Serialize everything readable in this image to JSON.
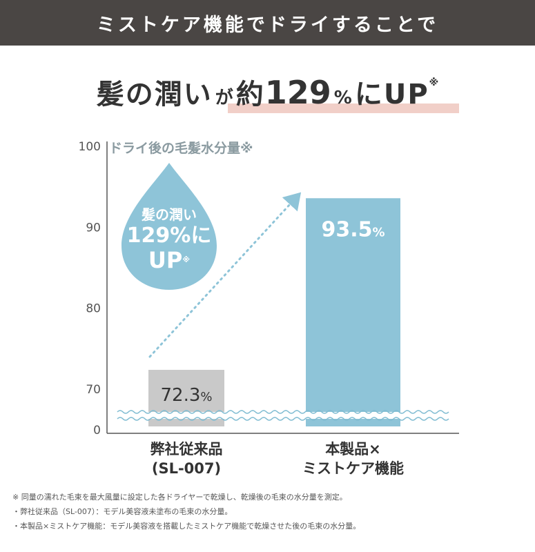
{
  "header": {
    "title": "ミストケア機能でドライすることで"
  },
  "headline": {
    "part1": "髪の潤い",
    "part2": "が",
    "part3": "約",
    "number": "129",
    "percent": "%",
    "part4": "にUP",
    "note": "※"
  },
  "drop": {
    "line1": "髪の潤い",
    "line2": "129%に",
    "line3": "UP",
    "note": "※"
  },
  "colors": {
    "header_bg": "#4a4644",
    "accent_bar": "#8ec4d8",
    "gray_bar": "#c9c9c9",
    "drop": "#8ec4d8",
    "underline": "#f1cfc8"
  },
  "chart_data": {
    "type": "bar",
    "title": "ドライ後の毛髪水分量※",
    "categories": [
      "弊社従来品\n(SL-007)",
      "本製品×\nミストケア機能"
    ],
    "category_lines": [
      [
        "弊社従来品",
        "(SL-007)"
      ],
      [
        "本製品×",
        "ミストケア機能"
      ]
    ],
    "values": [
      72.3,
      93.5
    ],
    "value_labels": [
      {
        "num": "72.3",
        "unit": "%"
      },
      {
        "num": "93.5",
        "unit": "%"
      }
    ],
    "yticks": [
      "100",
      "90",
      "80",
      "70",
      "0"
    ],
    "ylim": [
      0,
      100
    ],
    "axis_break": "wavy line between 0 and 70"
  },
  "footnotes": [
    "※ 同量の濡れた毛束を最大風量に設定した各ドライヤーで乾燥し、乾燥後の毛束の水分量を測定。",
    "・弊社従来品（SL-007）：モデル美容液未塗布の毛束の水分量。",
    "・本製品×ミストケア機能：モデル美容液を搭載したミストケア機能で乾燥させた後の毛束の水分量。"
  ]
}
